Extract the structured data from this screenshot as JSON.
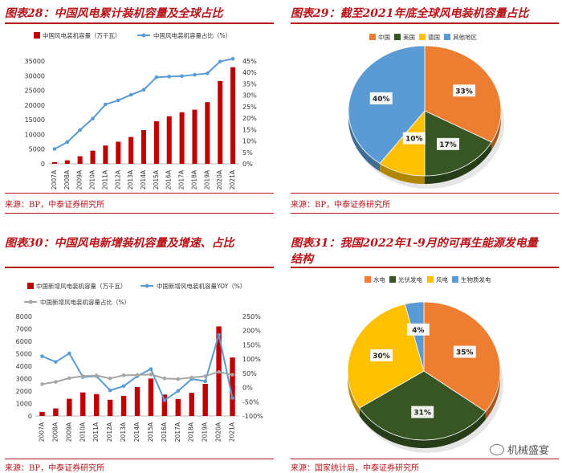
{
  "panels": {
    "p28": {
      "title": "图表28：中国风电累计装机容量及全球占比",
      "source": "来源：BP，中泰证券研究所"
    },
    "p29": {
      "title": "图表29：截至2021年底全球风电装机容量占比",
      "source": "来源：BP，中泰证券研究所"
    },
    "p30": {
      "title": "图表30：中国风电新增装机容量及增速、占比",
      "source": "来源：BP，中泰证券研究所"
    },
    "p31": {
      "title_line1": "图表31：我国2022年1-9月的可再生能源发电量",
      "title_line2": "结构",
      "source": "来源：国家统计局，中泰证券研究所"
    }
  },
  "watermark": {
    "icon": "wechat-icon",
    "text": "机械盛宴"
  },
  "colors": {
    "red": "#c00000",
    "blue": "#5b9bd5",
    "gray": "#a6a6a6",
    "brand": "#b8141a"
  },
  "chart_data": [
    {
      "id": "c28",
      "type": "bar",
      "categories": [
        "2007A",
        "2008A",
        "2009A",
        "2010A",
        "2011A",
        "2012A",
        "2013A",
        "2014A",
        "2015A",
        "2016A",
        "2017A",
        "2018A",
        "2019A",
        "2020A",
        "2021A"
      ],
      "series": [
        {
          "name": "中国风电装机容量（万千瓦）",
          "type": "bar",
          "axis": "left",
          "color": "#c00000",
          "values": [
            590,
            1200,
            2580,
            4470,
            6230,
            7530,
            9140,
            11470,
            14480,
            16200,
            17560,
            18420,
            21000,
            28200,
            32900
          ]
        },
        {
          "name": "中国风电装机容量占比（%）",
          "type": "line",
          "axis": "right",
          "color": "#5b9bd5",
          "values": [
            6.5,
            9.5,
            14.8,
            19.8,
            26.0,
            27.8,
            30.2,
            32.4,
            37.9,
            38.2,
            38.4,
            39.0,
            39.6,
            44.8,
            46.0
          ]
        }
      ],
      "y_left": {
        "min": 0,
        "max": 35000,
        "ticks": [
          "0",
          "5000",
          "10000",
          "15000",
          "20000",
          "25000",
          "30000",
          "35000"
        ]
      },
      "y_right": {
        "min": 0,
        "max": 45,
        "ticks": [
          "0%",
          "5%",
          "10%",
          "15%",
          "20%",
          "25%",
          "30%",
          "35%",
          "40%",
          "45%"
        ]
      }
    },
    {
      "id": "c29",
      "type": "pie",
      "legend": [
        "中国",
        "美国",
        "德国",
        "其他地区"
      ],
      "labels": [
        "中国",
        "美国",
        "德国",
        "其他地区"
      ],
      "values": [
        33,
        17,
        10,
        40
      ],
      "value_labels": [
        "33%",
        "17%",
        "10%",
        "40%"
      ],
      "colors": [
        "#ed7d31",
        "#375623",
        "#ffc000",
        "#5b9bd5"
      ]
    },
    {
      "id": "c30",
      "type": "bar",
      "categories": [
        "2007A",
        "2008A",
        "2009A",
        "2010A",
        "2011A",
        "2012A",
        "2013A",
        "2014A",
        "2015A",
        "2016A",
        "2017A",
        "2018A",
        "2019A",
        "2020A",
        "2021A"
      ],
      "series": [
        {
          "name": "中国新增风电装机容量（万千瓦）",
          "type": "bar",
          "axis": "left",
          "color": "#c00000",
          "values": [
            330,
            610,
            1380,
            1890,
            1760,
            1300,
            1610,
            2320,
            3010,
            1720,
            1360,
            1860,
            2580,
            7200,
            4700
          ]
        },
        {
          "name": "中国新增风电装机容量YOY（%）",
          "type": "line",
          "axis": "right",
          "color": "#5b9bd5",
          "values": [
            110,
            90,
            120,
            37,
            40,
            -10,
            5,
            40,
            65,
            -45,
            -12,
            30,
            22,
            185,
            -37
          ]
        },
        {
          "name": "中国新增风电装机容量占比（%）",
          "type": "line",
          "axis": "right",
          "color": "#a6a6a6",
          "values": [
            12,
            20,
            33,
            40,
            42,
            32,
            43,
            44,
            46,
            32,
            30,
            35,
            40,
            55,
            45
          ]
        }
      ],
      "y_left": {
        "min": 0,
        "max": 8000,
        "ticks": [
          "0",
          "1000",
          "2000",
          "3000",
          "4000",
          "5000",
          "6000",
          "7000",
          "8000"
        ]
      },
      "y_right": {
        "min": -100,
        "max": 250,
        "ticks": [
          "-100%",
          "-50%",
          "0%",
          "50%",
          "100%",
          "150%",
          "200%",
          "250%"
        ]
      }
    },
    {
      "id": "c31",
      "type": "pie",
      "legend": [
        "水电",
        "光伏发电",
        "风电",
        "生物质发电"
      ],
      "labels": [
        "水电",
        "光伏发电",
        "风电",
        "生物质发电"
      ],
      "values": [
        35,
        31,
        30,
        4
      ],
      "value_labels": [
        "35%",
        "31%",
        "30%",
        "4%"
      ],
      "colors": [
        "#ed7d31",
        "#375623",
        "#ffc000",
        "#5b9bd5"
      ]
    }
  ]
}
